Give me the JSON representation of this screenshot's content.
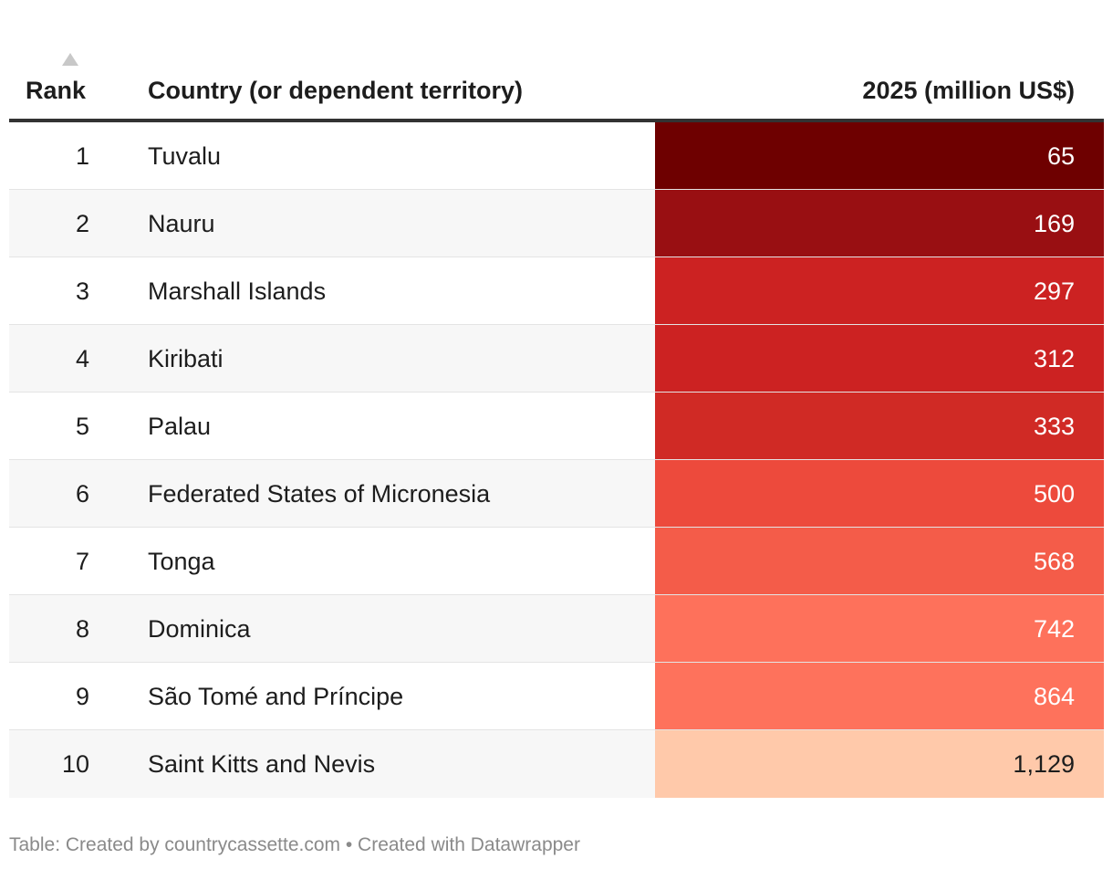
{
  "chart_data": {
    "type": "table",
    "columns": [
      "Rank",
      "Country (or dependent territory)",
      "2025 (million US$)"
    ],
    "rows": [
      {
        "rank": "1",
        "country": "Tuvalu",
        "value": "65",
        "bg": "#6e0000",
        "fg": "#ffffff",
        "stripe": "#ffffff"
      },
      {
        "rank": "2",
        "country": "Nauru",
        "value": "169",
        "bg": "#990f12",
        "fg": "#ffffff",
        "stripe": "#f7f7f7"
      },
      {
        "rank": "3",
        "country": "Marshall Islands",
        "value": "297",
        "bg": "#cc2222",
        "fg": "#ffffff",
        "stripe": "#ffffff"
      },
      {
        "rank": "4",
        "country": "Kiribati",
        "value": "312",
        "bg": "#cc2222",
        "fg": "#ffffff",
        "stripe": "#f7f7f7"
      },
      {
        "rank": "5",
        "country": "Palau",
        "value": "333",
        "bg": "#d02a25",
        "fg": "#ffffff",
        "stripe": "#ffffff"
      },
      {
        "rank": "6",
        "country": "Federated States of Micronesia",
        "value": "500",
        "bg": "#ed4a3c",
        "fg": "#ffffff",
        "stripe": "#f7f7f7"
      },
      {
        "rank": "7",
        "country": "Tonga",
        "value": "568",
        "bg": "#f45c49",
        "fg": "#ffffff",
        "stripe": "#ffffff"
      },
      {
        "rank": "8",
        "country": "Dominica",
        "value": "742",
        "bg": "#fe715b",
        "fg": "#ffffff",
        "stripe": "#f7f7f7"
      },
      {
        "rank": "9",
        "country": "São Tomé and Príncipe",
        "value": "864",
        "bg": "#fe725c",
        "fg": "#ffffff",
        "stripe": "#ffffff"
      },
      {
        "rank": "10",
        "country": "Saint Kitts and Nevis",
        "value": "1,129",
        "bg": "#ffc9aa",
        "fg": "#1d1d1d",
        "stripe": "#f7f7f7"
      }
    ],
    "sort": {
      "column": "Rank",
      "direction": "ascending"
    }
  },
  "footer": {
    "text": "Table: Created by countrycassette.com • Created with Datawrapper"
  }
}
